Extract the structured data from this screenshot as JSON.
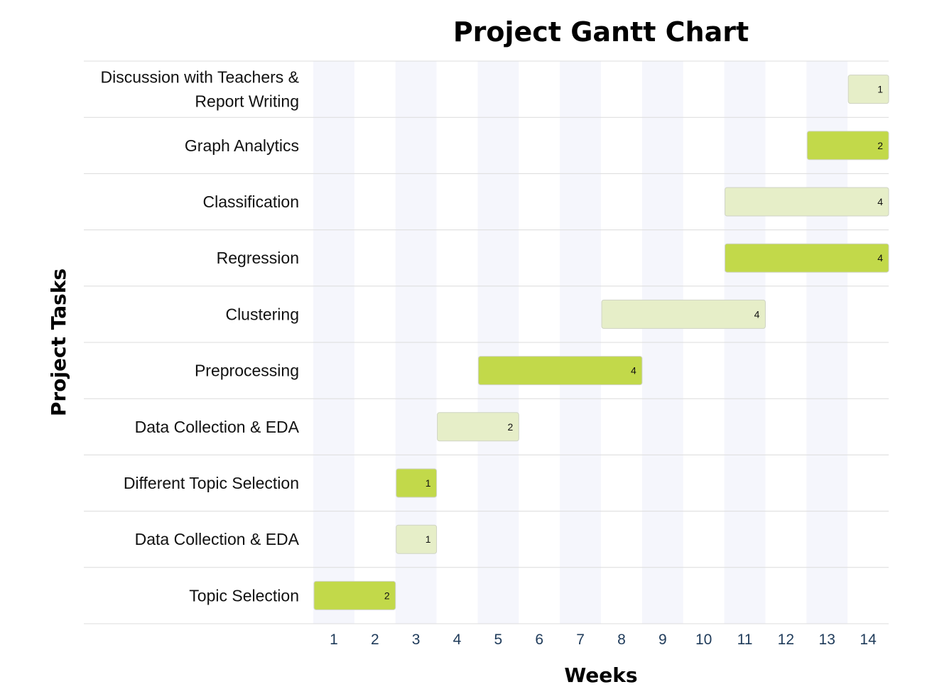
{
  "chart_data": {
    "type": "gantt",
    "title": "Project Gantt Chart",
    "xlabel": "Weeks",
    "ylabel": "Project Tasks",
    "x_ticks": [
      "1",
      "2",
      "3",
      "4",
      "5",
      "6",
      "7",
      "8",
      "9",
      "10",
      "11",
      "12",
      "13",
      "14"
    ],
    "xlim": [
      1,
      14
    ],
    "colors": {
      "dark": "#c2d94a",
      "light": "#e6eec8",
      "band": "#f5f6fc",
      "grid": "#dcdcdc"
    },
    "tasks": [
      {
        "label": "Discussion with Teachers &",
        "label2": "Report Writing",
        "start": 14,
        "duration": 1,
        "bar_label": "1",
        "color": "light"
      },
      {
        "label": "Graph Analytics",
        "start": 13,
        "duration": 2,
        "bar_label": "2",
        "color": "dark"
      },
      {
        "label": "Classification",
        "start": 11,
        "duration": 4,
        "bar_label": "4",
        "color": "light"
      },
      {
        "label": "Regression",
        "start": 11,
        "duration": 4,
        "bar_label": "4",
        "color": "dark"
      },
      {
        "label": "Clustering",
        "start": 8,
        "duration": 4,
        "bar_label": "4",
        "color": "light"
      },
      {
        "label": "Preprocessing",
        "start": 5,
        "duration": 4,
        "bar_label": "4",
        "color": "dark"
      },
      {
        "label": "Data Collection & EDA",
        "start": 4,
        "duration": 2,
        "bar_label": "2",
        "color": "light"
      },
      {
        "label": "Different Topic Selection",
        "start": 3,
        "duration": 1,
        "bar_label": "1",
        "color": "dark"
      },
      {
        "label": "Data Collection & EDA",
        "start": 3,
        "duration": 1,
        "bar_label": "1",
        "color": "light"
      },
      {
        "label": "Topic Selection",
        "start": 1,
        "duration": 2,
        "bar_label": "2",
        "color": "dark"
      }
    ]
  }
}
